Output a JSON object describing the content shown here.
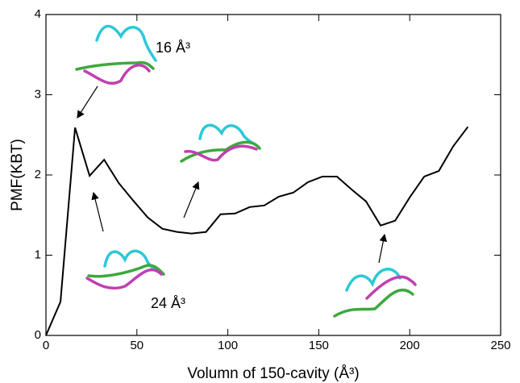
{
  "chart_data": {
    "type": "line",
    "x_label": "Volumn of 150-cavity (Å³)",
    "y_label": "PMF(KBT)",
    "annotations": [
      "16 Å³",
      "24 Å³"
    ],
    "x": [
      0,
      8,
      16,
      24,
      32,
      40,
      48,
      56,
      64,
      72,
      80,
      88,
      96,
      104,
      112,
      120,
      128,
      136,
      144,
      152,
      160,
      168,
      176,
      184,
      192,
      200,
      208,
      216,
      224,
      232
    ],
    "series": [
      {
        "color": "#000000",
        "values": [
          0,
          0.42,
          2.59,
          1.99,
          2.19,
          1.9,
          1.68,
          1.47,
          1.33,
          1.29,
          1.27,
          1.29,
          1.51,
          1.52,
          1.6,
          1.62,
          1.73,
          1.78,
          1.91,
          1.98,
          1.98,
          1.82,
          1.67,
          1.37,
          1.43,
          1.72,
          1.98,
          2.05,
          2.36,
          2.6
        ]
      }
    ],
    "xlim": [
      0,
      250
    ],
    "xticks": [
      0,
      50,
      100,
      150,
      200,
      250
    ],
    "ylim": [
      0,
      4
    ],
    "yticks": [
      0,
      1,
      2,
      3,
      4
    ]
  }
}
